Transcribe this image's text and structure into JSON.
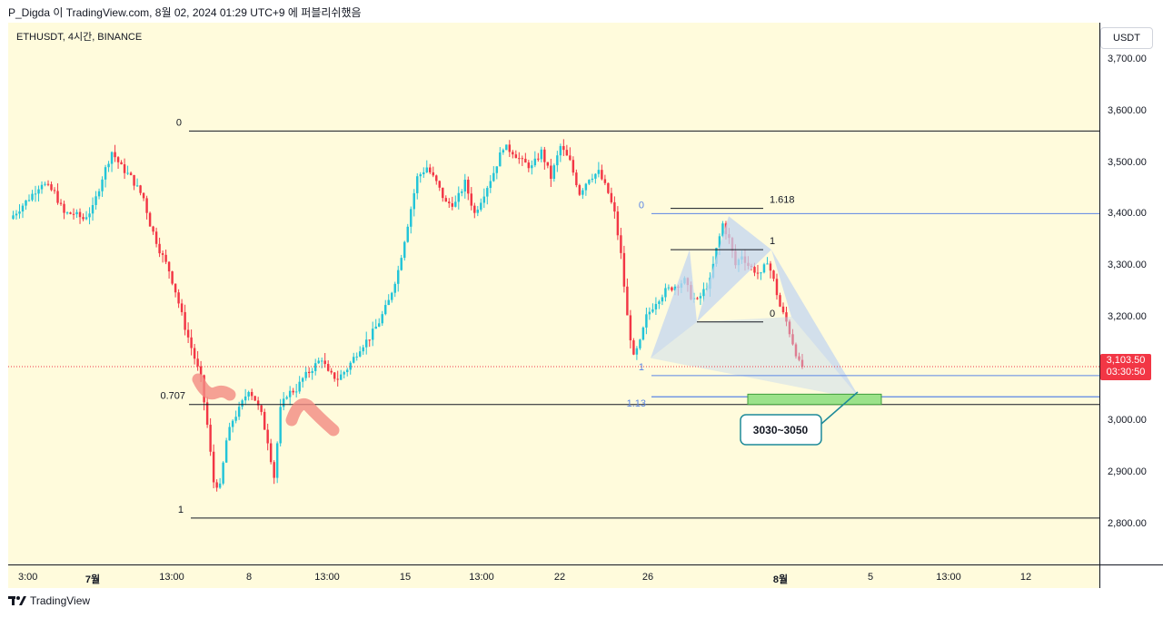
{
  "header": {
    "text": "P_Digda 이 TradingView.com, 8월 02, 2024 01:29 UTC+9 에 퍼블리쉬했음"
  },
  "symbol": "ETHUSDT, 4시간, BINANCE",
  "currency_button": "USDT",
  "last_price": {
    "price": "3,103.50",
    "countdown": "03:30:50"
  },
  "footer": {
    "brand": "TradingView"
  },
  "colors": {
    "up": "#26a69a",
    "up_bright": "#22c4d8",
    "down": "#f23645",
    "background": "#fffbdc",
    "fib_line": "#5b86e5",
    "pattern_fill": "#c3d6f0",
    "target_zone": "#9be28a",
    "arrow_highlight": "#f28b82"
  },
  "chart_data": {
    "type": "candlestick",
    "title": "ETHUSDT, 4시간, BINANCE",
    "y_ticks": [
      "3,700.00",
      "3,600.00",
      "3,500.00",
      "3,400.00",
      "3,300.00",
      "3,200.00",
      "3,100.00",
      "3,000.00",
      "2,900.00",
      "2,800.00"
    ],
    "ylim": [
      2720,
      3770
    ],
    "x_ticks": [
      "3:00",
      "7월",
      "13:00",
      "8",
      "13:00",
      "15",
      "13:00",
      "22",
      "26",
      "8월",
      "5",
      "13:00",
      "12"
    ],
    "price_path": [
      [
        0,
        3390
      ],
      [
        6,
        3430
      ],
      [
        10,
        3460
      ],
      [
        14,
        3440
      ],
      [
        17,
        3400
      ],
      [
        20,
        3400
      ],
      [
        23,
        3390
      ],
      [
        26,
        3410
      ],
      [
        29,
        3470
      ],
      [
        32,
        3520
      ],
      [
        35,
        3490
      ],
      [
        38,
        3470
      ],
      [
        42,
        3430
      ],
      [
        44,
        3380
      ],
      [
        47,
        3330
      ],
      [
        50,
        3290
      ],
      [
        52,
        3250
      ],
      [
        55,
        3180
      ],
      [
        58,
        3120
      ],
      [
        60,
        3080
      ],
      [
        62,
        2990
      ],
      [
        64,
        2880
      ],
      [
        66,
        2870
      ],
      [
        68,
        2960
      ],
      [
        70,
        3000
      ],
      [
        72,
        3020
      ],
      [
        75,
        3060
      ],
      [
        77,
        3040
      ],
      [
        79,
        3010
      ],
      [
        81,
        2960
      ],
      [
        83,
        2890
      ],
      [
        85,
        3020
      ],
      [
        87,
        3050
      ],
      [
        90,
        3060
      ],
      [
        92,
        3080
      ],
      [
        95,
        3100
      ],
      [
        98,
        3120
      ],
      [
        100,
        3090
      ],
      [
        103,
        3080
      ],
      [
        106,
        3100
      ],
      [
        110,
        3140
      ],
      [
        113,
        3160
      ],
      [
        116,
        3190
      ],
      [
        119,
        3230
      ],
      [
        122,
        3290
      ],
      [
        125,
        3380
      ],
      [
        128,
        3470
      ],
      [
        131,
        3490
      ],
      [
        134,
        3460
      ],
      [
        137,
        3420
      ],
      [
        140,
        3420
      ],
      [
        143,
        3460
      ],
      [
        146,
        3400
      ],
      [
        149,
        3440
      ],
      [
        152,
        3480
      ],
      [
        155,
        3530
      ],
      [
        158,
        3520
      ],
      [
        161,
        3500
      ],
      [
        164,
        3490
      ],
      [
        167,
        3520
      ],
      [
        170,
        3470
      ],
      [
        173,
        3530
      ],
      [
        176,
        3500
      ],
      [
        179,
        3440
      ],
      [
        182,
        3470
      ],
      [
        185,
        3480
      ],
      [
        188,
        3440
      ],
      [
        190,
        3400
      ],
      [
        192,
        3320
      ],
      [
        194,
        3200
      ],
      [
        196,
        3120
      ],
      [
        198,
        3150
      ],
      [
        200,
        3200
      ],
      [
        203,
        3230
      ],
      [
        206,
        3250
      ],
      [
        209,
        3260
      ],
      [
        212,
        3270
      ],
      [
        214,
        3240
      ],
      [
        216,
        3230
      ],
      [
        218,
        3250
      ],
      [
        220,
        3270
      ],
      [
        222,
        3330
      ],
      [
        224,
        3380
      ],
      [
        226,
        3350
      ],
      [
        228,
        3300
      ],
      [
        230,
        3320
      ],
      [
        232,
        3300
      ],
      [
        234,
        3290
      ],
      [
        236,
        3280
      ],
      [
        238,
        3310
      ],
      [
        240,
        3270
      ],
      [
        242,
        3220
      ],
      [
        244,
        3190
      ],
      [
        246,
        3150
      ],
      [
        248,
        3110
      ],
      [
        249,
        3103.5
      ]
    ],
    "levels": [
      {
        "label": "0",
        "value": 3560
      },
      {
        "label": "0.707",
        "value": 3030
      },
      {
        "label": "1",
        "value": 2810
      }
    ],
    "harmonic_pattern": {
      "fib_levels": [
        {
          "label": "0",
          "value": 3400
        },
        {
          "label": "1",
          "value": 3086
        },
        {
          "label": "1.13",
          "value": 3045
        }
      ],
      "xabcd_labels": [
        {
          "label": "1.618",
          "value": 3410
        },
        {
          "label": "1",
          "value": 3330
        },
        {
          "label": "0",
          "value": 3190
        }
      ],
      "target_zone": {
        "low": 3030,
        "high": 3050,
        "label": "3030~3050"
      }
    },
    "current_price": 3103.5,
    "annotations": [
      "0",
      "0.707",
      "1",
      "0",
      "1",
      "1.13",
      "1.618",
      "1",
      "0",
      "3030~3050"
    ]
  }
}
